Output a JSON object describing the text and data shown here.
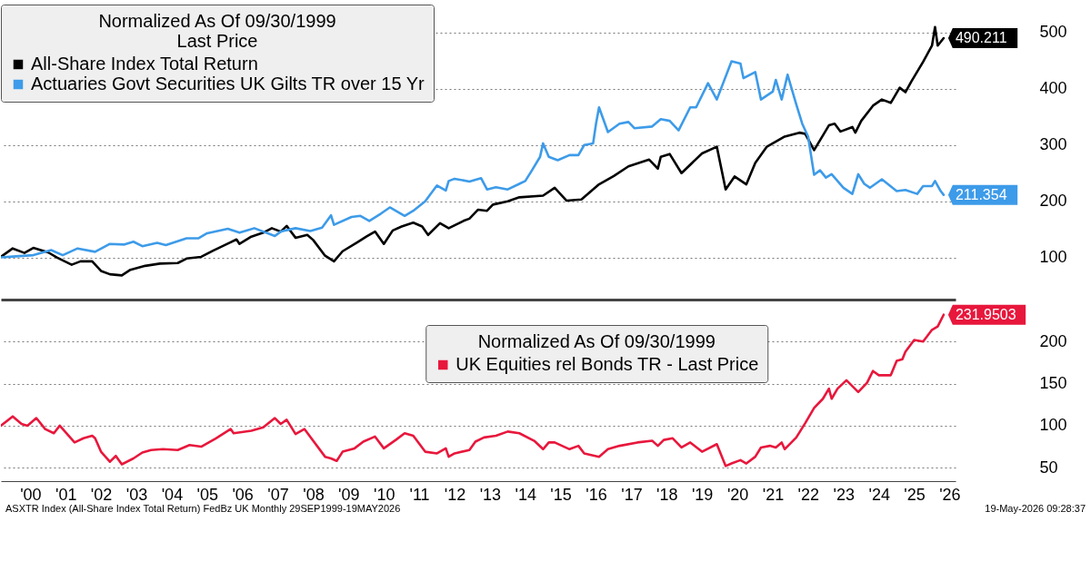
{
  "chart_data": [
    {
      "type": "line",
      "legend_title": "Normalized As Of 09/30/1999\nLast Price",
      "legend": "top left",
      "grid": "y",
      "tick_labels": "y",
      "xlim": [
        "1999-09",
        "2026-09"
      ],
      "ylim": [
        25,
        550
      ],
      "yticks": [
        100,
        200,
        300,
        400,
        500
      ],
      "series": [
        {
          "name": "All-Share Index Total Return",
          "color": "#000000",
          "x": [
            "1999-09",
            "2000-01",
            "2000-05",
            "2000-08",
            "2001-01",
            "2001-04",
            "2001-09",
            "2001-12",
            "2002-04",
            "2002-07",
            "2002-10",
            "2003-02",
            "2003-05",
            "2003-10",
            "2004-03",
            "2004-09",
            "2004-12",
            "2005-05",
            "2005-09",
            "2006-03",
            "2006-05",
            "2006-06",
            "2006-10",
            "2007-02",
            "2007-05",
            "2007-08",
            "2007-10",
            "2008-01",
            "2008-05",
            "2008-07",
            "2008-11",
            "2009-02",
            "2009-05",
            "2009-10",
            "2010-01",
            "2010-04",
            "2010-07",
            "2010-10",
            "2011-01",
            "2011-05",
            "2011-08",
            "2011-10",
            "2012-02",
            "2012-05",
            "2012-10",
            "2012-12",
            "2013-03",
            "2013-06",
            "2013-08",
            "2014-01",
            "2014-05",
            "2015-01",
            "2015-05",
            "2015-09",
            "2016-02",
            "2016-08",
            "2017-01",
            "2017-06",
            "2018-01",
            "2018-04",
            "2018-05",
            "2018-08",
            "2018-12",
            "2019-07",
            "2019-12",
            "2020-03",
            "2020-06",
            "2020-10",
            "2021-01",
            "2021-05",
            "2021-11",
            "2022-04",
            "2022-06",
            "2022-09",
            "2023-02",
            "2023-04",
            "2023-06",
            "2023-10",
            "2023-11",
            "2024-01",
            "2024-05",
            "2024-08",
            "2024-11",
            "2025-02",
            "2025-04",
            "2025-06",
            "2025-10",
            "2026-01",
            "2026-02",
            "2026-03",
            "2026-05"
          ],
          "values": [
            101,
            116,
            108,
            117,
            109,
            100,
            87,
            93,
            93,
            76,
            70,
            68,
            78,
            85,
            89,
            90,
            98,
            101,
            112,
            127,
            132,
            124,
            137,
            144,
            152,
            146,
            156,
            135,
            140,
            131,
            103,
            93,
            111,
            127,
            137,
            146,
            124,
            148,
            155,
            162,
            155,
            140,
            161,
            152,
            165,
            169,
            185,
            183,
            194,
            200,
            207,
            210,
            224,
            201,
            203,
            230,
            245,
            262,
            274,
            258,
            279,
            284,
            250,
            285,
            297,
            221,
            244,
            230,
            268,
            297,
            315,
            322,
            320,
            291,
            335,
            338,
            324,
            332,
            322,
            343,
            370,
            381,
            375,
            402,
            394,
            413,
            448,
            477,
            510,
            477,
            490.211
          ],
          "value_labels": [
            null,
            null,
            null,
            null,
            null,
            null,
            null,
            null,
            null,
            null,
            null,
            null,
            null,
            null,
            null,
            null,
            null,
            null,
            null,
            null,
            null,
            null,
            null,
            null,
            null,
            null,
            null,
            null,
            null,
            null,
            null,
            null,
            null,
            null,
            null,
            null,
            null,
            null,
            null,
            null,
            null,
            null,
            null,
            null,
            null,
            null,
            null,
            null,
            null,
            null,
            null,
            null,
            null,
            null,
            null,
            null,
            null,
            null,
            null,
            null,
            null,
            null,
            null,
            null,
            null,
            null,
            null,
            null,
            null,
            null,
            null,
            null,
            null,
            null,
            null,
            null,
            null,
            null,
            null,
            null,
            null,
            null,
            null,
            null,
            null,
            null,
            null,
            null,
            null,
            null,
            "490.211"
          ]
        },
        {
          "name": "Actuaries Govt Securities UK Gilts TR over 15 Yr",
          "color": "#3d9be9",
          "x": [
            "1999-09",
            "2000-02",
            "2000-08",
            "2001-02",
            "2001-06",
            "2001-11",
            "2002-05",
            "2002-10",
            "2003-03",
            "2003-06",
            "2003-09",
            "2004-02",
            "2004-05",
            "2004-12",
            "2005-04",
            "2005-07",
            "2006-02",
            "2006-06",
            "2006-11",
            "2007-02",
            "2007-06",
            "2007-08",
            "2008-01",
            "2008-06",
            "2008-10",
            "2009-01",
            "2009-02",
            "2009-08",
            "2009-11",
            "2010-02",
            "2010-06",
            "2010-09",
            "2011-02",
            "2011-05",
            "2011-09",
            "2012-01",
            "2012-04",
            "2012-05",
            "2012-07",
            "2012-12",
            "2013-04",
            "2013-06",
            "2013-09",
            "2014-01",
            "2014-05",
            "2014-07",
            "2014-09",
            "2014-12",
            "2015-01",
            "2015-03",
            "2015-06",
            "2015-10",
            "2016-01",
            "2016-03",
            "2016-06",
            "2016-07",
            "2016-08",
            "2016-11",
            "2017-03",
            "2017-06",
            "2017-08",
            "2018-02",
            "2018-05",
            "2018-08",
            "2018-11",
            "2019-03",
            "2019-05",
            "2019-09",
            "2019-12",
            "2020-05",
            "2020-08",
            "2020-09",
            "2021-01",
            "2021-03",
            "2021-07",
            "2021-08",
            "2021-10",
            "2021-12",
            "2022-03",
            "2022-05",
            "2022-07",
            "2022-09",
            "2022-11",
            "2023-01",
            "2023-03",
            "2023-07",
            "2023-10",
            "2023-12",
            "2024-02",
            "2024-04",
            "2024-08",
            "2025-01",
            "2025-04",
            "2025-08",
            "2025-10",
            "2026-01",
            "2026-02",
            "2026-04",
            "2026-05"
          ],
          "values": [
            100,
            102,
            104,
            113,
            104,
            116,
            110,
            124,
            123,
            128,
            120,
            126,
            122,
            134,
            134,
            143,
            151,
            144,
            152,
            146,
            138,
            146,
            152,
            147,
            153,
            175,
            158,
            172,
            174,
            165,
            178,
            189,
            174,
            183,
            200,
            228,
            219,
            236,
            240,
            235,
            241,
            221,
            225,
            221,
            231,
            236,
            253,
            279,
            303,
            279,
            273,
            282,
            282,
            300,
            303,
            338,
            367,
            323,
            338,
            341,
            330,
            333,
            346,
            343,
            326,
            367,
            367,
            410,
            381,
            449,
            445,
            419,
            430,
            381,
            395,
            416,
            381,
            425,
            372,
            338,
            315,
            247,
            255,
            242,
            248,
            224,
            213,
            248,
            231,
            224,
            239,
            218,
            220,
            213,
            227,
            227,
            236,
            218,
            211.354
          ],
          "value_labels": [
            null,
            null,
            null,
            null,
            null,
            null,
            null,
            null,
            null,
            null,
            null,
            null,
            null,
            null,
            null,
            null,
            null,
            null,
            null,
            null,
            null,
            null,
            null,
            null,
            null,
            null,
            null,
            null,
            null,
            null,
            null,
            null,
            null,
            null,
            null,
            null,
            null,
            null,
            null,
            null,
            null,
            null,
            null,
            null,
            null,
            null,
            null,
            null,
            null,
            null,
            null,
            null,
            null,
            null,
            null,
            null,
            null,
            null,
            null,
            null,
            null,
            null,
            null,
            null,
            null,
            null,
            null,
            null,
            null,
            null,
            null,
            null,
            null,
            null,
            null,
            null,
            null,
            null,
            null,
            null,
            null,
            null,
            null,
            null,
            null,
            null,
            null,
            null,
            null,
            null,
            null,
            null,
            null,
            null,
            null,
            null,
            null,
            null,
            "211.354"
          ]
        }
      ]
    },
    {
      "type": "line",
      "legend_title": "Normalized As Of 09/30/1999",
      "legend": "top",
      "grid": "y",
      "xlim": [
        "1999-09",
        "2026-09"
      ],
      "ylim": [
        34,
        250
      ],
      "yticks": [
        50,
        100,
        150,
        200
      ],
      "xticks": [
        {
          "value": "2000-07",
          "label": "'00"
        },
        {
          "value": "2001-07",
          "label": "'01"
        },
        {
          "value": "2002-07",
          "label": "'02"
        },
        {
          "value": "2003-07",
          "label": "'03"
        },
        {
          "value": "2004-07",
          "label": "'04"
        },
        {
          "value": "2005-07",
          "label": "'05"
        },
        {
          "value": "2006-07",
          "label": "'06"
        },
        {
          "value": "2007-07",
          "label": "'07"
        },
        {
          "value": "2008-07",
          "label": "'08"
        },
        {
          "value": "2009-07",
          "label": "'09"
        },
        {
          "value": "2010-07",
          "label": "'10"
        },
        {
          "value": "2011-07",
          "label": "'11"
        },
        {
          "value": "2012-07",
          "label": "'12"
        },
        {
          "value": "2013-07",
          "label": "'13"
        },
        {
          "value": "2014-07",
          "label": "'14"
        },
        {
          "value": "2015-07",
          "label": "'15"
        },
        {
          "value": "2016-07",
          "label": "'16"
        },
        {
          "value": "2017-07",
          "label": "'17"
        },
        {
          "value": "2018-07",
          "label": "'18"
        },
        {
          "value": "2019-07",
          "label": "'19"
        },
        {
          "value": "2020-07",
          "label": "'20"
        },
        {
          "value": "2021-07",
          "label": "'21"
        },
        {
          "value": "2022-07",
          "label": "'22"
        },
        {
          "value": "2023-07",
          "label": "'23"
        },
        {
          "value": "2024-07",
          "label": "'24"
        },
        {
          "value": "2025-07",
          "label": "'25"
        },
        {
          "value": "2026-07",
          "label": "'26"
        }
      ],
      "annotations": [
        "ASXTR Index (All-Share Index Total Return) FedBz UK Monthly 29SEP1999-19MAY2026",
        "19-May-2026 09:28:37"
      ],
      "series": [
        {
          "name": "UK Equities rel Bonds TR - Last Price",
          "color": "#e8173c",
          "x": [
            "1999-09",
            "2000-01",
            "2000-04",
            "2000-06",
            "2000-09",
            "2000-12",
            "2001-03",
            "2001-05",
            "2001-10",
            "2002-01",
            "2002-04",
            "2002-05",
            "2002-07",
            "2002-10",
            "2002-12",
            "2003-02",
            "2003-06",
            "2003-09",
            "2003-12",
            "2004-04",
            "2004-09",
            "2005-01",
            "2005-05",
            "2005-10",
            "2006-03",
            "2006-04",
            "2006-10",
            "2007-02",
            "2007-06",
            "2007-08",
            "2007-10",
            "2008-01",
            "2008-04",
            "2008-11",
            "2009-01",
            "2009-03",
            "2009-05",
            "2009-09",
            "2009-12",
            "2010-04",
            "2010-07",
            "2010-11",
            "2011-02",
            "2011-05",
            "2011-09",
            "2012-01",
            "2012-04",
            "2012-05",
            "2012-07",
            "2012-12",
            "2013-02",
            "2013-05",
            "2013-09",
            "2014-01",
            "2014-05",
            "2014-10",
            "2015-01",
            "2015-03",
            "2015-05",
            "2015-10",
            "2016-01",
            "2016-03",
            "2016-08",
            "2016-11",
            "2017-03",
            "2017-09",
            "2018-02",
            "2018-04",
            "2018-06",
            "2018-09",
            "2018-12",
            "2019-03",
            "2019-07",
            "2019-12",
            "2020-03",
            "2020-05",
            "2020-08",
            "2020-10",
            "2021-01",
            "2021-03",
            "2021-06",
            "2021-08",
            "2021-10",
            "2021-11",
            "2022-03",
            "2022-06",
            "2022-09",
            "2022-12",
            "2023-02",
            "2023-03",
            "2023-05",
            "2023-08",
            "2023-12",
            "2024-03",
            "2024-05",
            "2024-07",
            "2024-11",
            "2025-01",
            "2025-03",
            "2025-04",
            "2025-07",
            "2025-10",
            "2026-01",
            "2026-03",
            "2026-05"
          ],
          "values": [
            100,
            111,
            102,
            100,
            109,
            96,
            91,
            100,
            80,
            85,
            88,
            85,
            69,
            57,
            64,
            54,
            61,
            68,
            71,
            72,
            71,
            77,
            75,
            85,
            96,
            91,
            94,
            98,
            109,
            102,
            107,
            90,
            96,
            63,
            61,
            58,
            69,
            73,
            81,
            87,
            73,
            83,
            91,
            88,
            69,
            67,
            73,
            63,
            67,
            71,
            81,
            86,
            88,
            93,
            91,
            82,
            72,
            80,
            80,
            72,
            76,
            67,
            63,
            72,
            76,
            80,
            82,
            76,
            83,
            85,
            74,
            80,
            69,
            78,
            52,
            55,
            59,
            55,
            63,
            74,
            76,
            74,
            80,
            72,
            86,
            103,
            121,
            132,
            144,
            132,
            144,
            154,
            140,
            151,
            165,
            160,
            160,
            177,
            179,
            188,
            202,
            200,
            214,
            218,
            231.9503
          ],
          "value_labels": [
            null,
            null,
            null,
            null,
            null,
            null,
            null,
            null,
            null,
            null,
            null,
            null,
            null,
            null,
            null,
            null,
            null,
            null,
            null,
            null,
            null,
            null,
            null,
            null,
            null,
            null,
            null,
            null,
            null,
            null,
            null,
            null,
            null,
            null,
            null,
            null,
            null,
            null,
            null,
            null,
            null,
            null,
            null,
            null,
            null,
            null,
            null,
            null,
            null,
            null,
            null,
            null,
            null,
            null,
            null,
            null,
            null,
            null,
            null,
            null,
            null,
            null,
            null,
            null,
            null,
            null,
            null,
            null,
            null,
            null,
            null,
            null,
            null,
            null,
            null,
            null,
            null,
            null,
            null,
            null,
            null,
            null,
            null,
            null,
            null,
            null,
            null,
            null,
            null,
            null,
            null,
            null,
            null,
            null,
            null,
            null,
            null,
            null,
            null,
            null,
            null,
            null,
            null,
            null,
            "231.9503"
          ]
        }
      ]
    }
  ]
}
